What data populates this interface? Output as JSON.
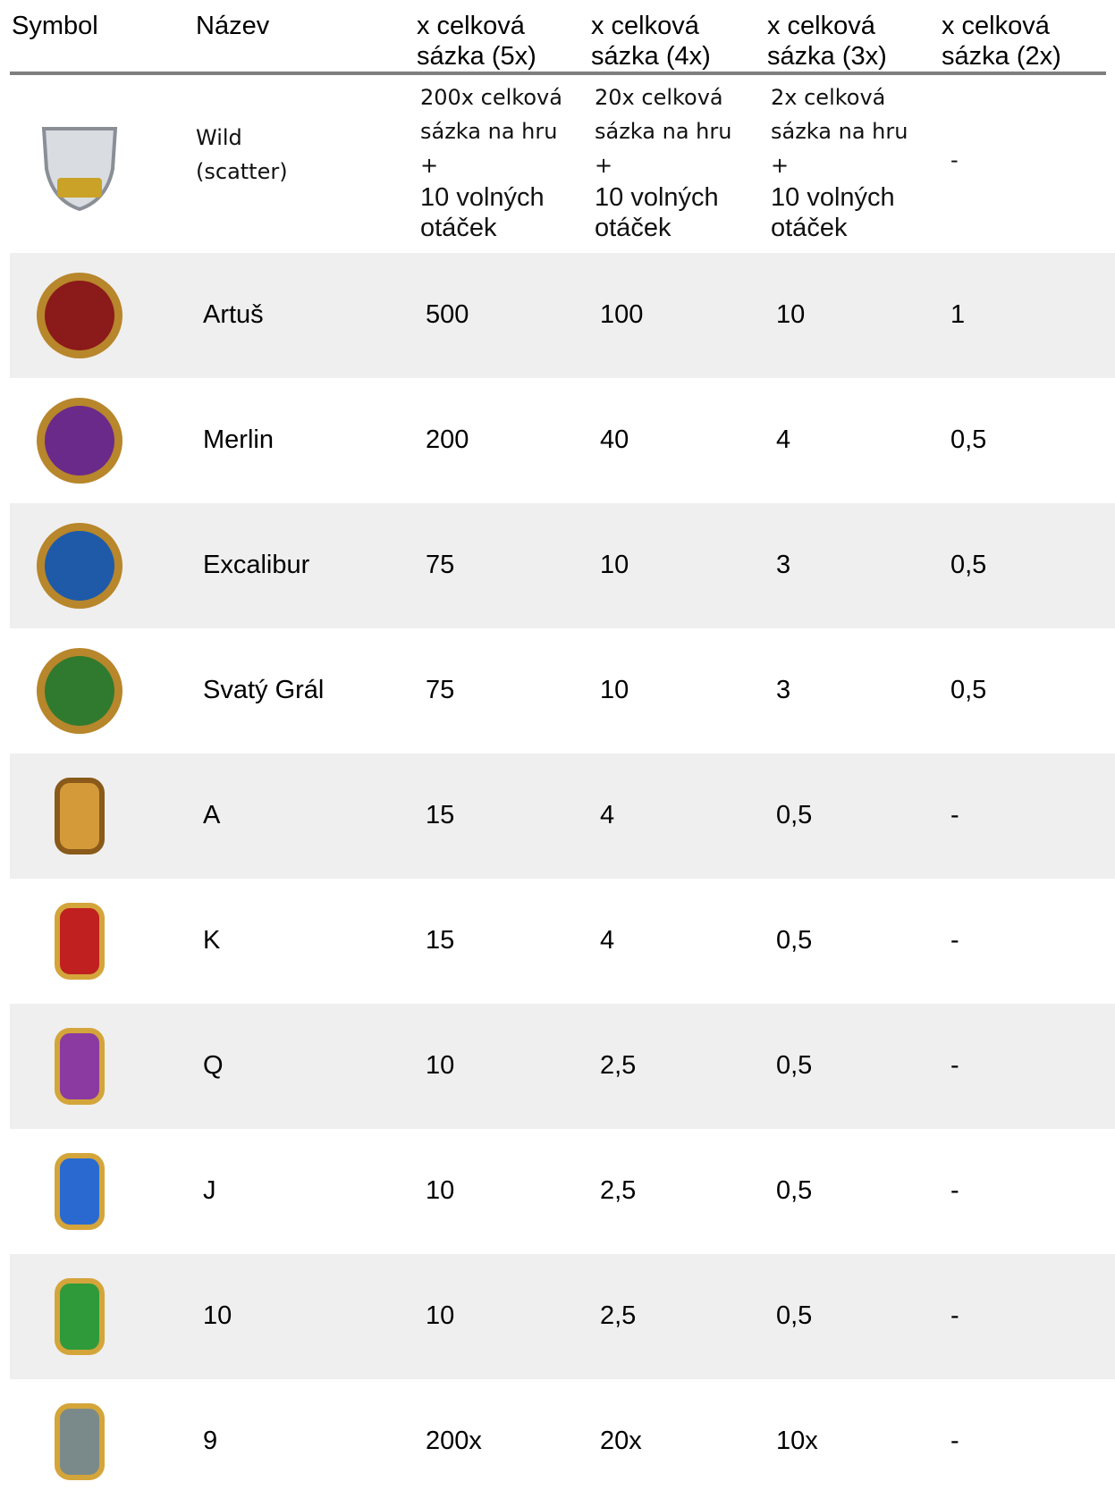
{
  "header": {
    "columns": [
      "Symbol",
      "Název",
      "x celková sázka (5x)",
      "x celková sázka (4x)",
      "x celková sázka (3x)",
      "x celková sázka (2x)"
    ]
  },
  "wild_row": {
    "name": [
      "Wild",
      "(scatter)"
    ],
    "cells": [
      [
        "200x celková",
        "sázka na hru",
        "+",
        "10 volných",
        "otáček"
      ],
      [
        "20x celková",
        "sázka na hru",
        "+",
        "10 volných",
        "otáček"
      ],
      [
        "2x celková",
        "sázka na hru",
        "+",
        "10 volných",
        "otáček"
      ],
      [
        "-"
      ]
    ]
  },
  "rows": [
    {
      "name": "Artuš",
      "values": [
        "500",
        "100",
        "10",
        "1"
      ]
    },
    {
      "name": "Merlin",
      "values": [
        "200",
        "40",
        "4",
        "0,5"
      ]
    },
    {
      "name": "Excalibur",
      "values": [
        "75",
        "10",
        "3",
        "0,5"
      ]
    },
    {
      "name": "Svatý Grál",
      "values": [
        "75",
        "10",
        "3",
        "0,5"
      ]
    },
    {
      "name": "A",
      "values": [
        "15",
        "4",
        "0,5",
        "-"
      ]
    },
    {
      "name": "K",
      "values": [
        "15",
        "4",
        "0,5",
        "-"
      ]
    },
    {
      "name": "Q",
      "values": [
        "10",
        "2,5",
        "0,5",
        "-"
      ]
    },
    {
      "name": "J",
      "values": [
        "10",
        "2,5",
        "0,5",
        "-"
      ]
    },
    {
      "name": "10",
      "values": [
        "10",
        "2,5",
        "0,5",
        "-"
      ]
    },
    {
      "name": "9",
      "values": [
        "200x",
        "20x",
        "10x",
        "-"
      ]
    }
  ]
}
